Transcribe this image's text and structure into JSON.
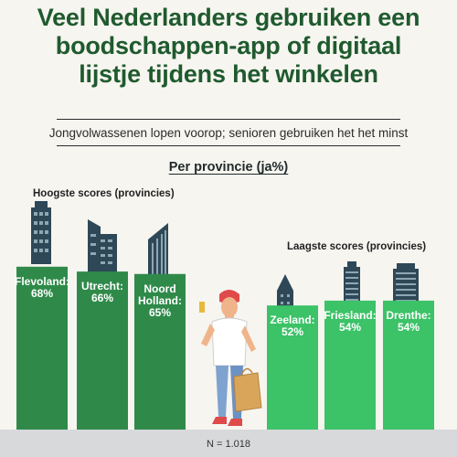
{
  "header": {
    "title_lines": [
      "Veel Nederlanders gebruiken een",
      "boodschappen-app of digitaal",
      "lijstje tijdens het winkelen"
    ],
    "subtitle": "Jongvolwassenen lopen voorop; senioren gebruiken het het minst",
    "section_title": "Per provincie (ja%)"
  },
  "groups": {
    "highest_label": "Hoogste scores (provincies)",
    "lowest_label": "Laagste scores (provincies)"
  },
  "chart_data": {
    "type": "bar",
    "unit": "%",
    "categories": [
      "Flevoland",
      "Utrecht",
      "Noord Holland",
      "Zeeland",
      "Friesland",
      "Drenthe"
    ],
    "values": [
      68,
      66,
      65,
      52,
      54,
      54
    ],
    "labels": [
      "Flevoland:\n68%",
      "Utrecht:\n66%",
      "Noord\nHolland:\n65%",
      "Zeeland:\n52%",
      "Friesland:\n54%",
      "Drenthe:\n54%"
    ],
    "groups": [
      "highest",
      "highest",
      "highest",
      "lowest",
      "lowest",
      "lowest"
    ]
  },
  "colors": {
    "title": "#1f5a2e",
    "bar_highest": "#2f8a4a",
    "bar_lowest": "#3cc267",
    "building": "#2f4858",
    "ground": "#d7d9db"
  },
  "footer": {
    "sample_note": "N = 1.018"
  }
}
